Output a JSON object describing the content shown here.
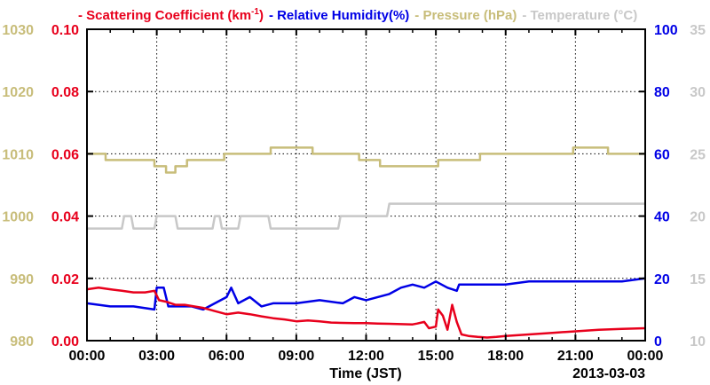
{
  "colors": {
    "scattering": "#e8001c",
    "humidity": "#0000e6",
    "pressure": "#c8bd7a",
    "temperature": "#c8c8c8",
    "axis": "#000000"
  },
  "legend": [
    {
      "label": "- Scattering Coefficient (km",
      "sup": "-1",
      "tail": ")",
      "color_key": "scattering"
    },
    {
      "label": "- Relative Humidity(%)",
      "color_key": "humidity"
    },
    {
      "label": "- Pressure (hPa)",
      "color_key": "pressure"
    },
    {
      "label": "- Temperature (°C)",
      "color_key": "temperature"
    }
  ],
  "chart_data": {
    "type": "line",
    "xlabel": "Time (JST)",
    "date_label": "2013-03-03",
    "x_ticks": [
      "00:00",
      "03:00",
      "06:00",
      "09:00",
      "12:00",
      "15:00",
      "18:00",
      "21:00",
      "00:00"
    ],
    "xlim": [
      0,
      24
    ],
    "grid": true,
    "axes": {
      "scattering": {
        "side": "left-inner",
        "range": [
          0.0,
          0.1
        ],
        "ticks": [
          "0.00",
          "0.02",
          "0.04",
          "0.06",
          "0.08",
          "0.10"
        ]
      },
      "pressure": {
        "side": "left-outer",
        "range": [
          980,
          1030
        ],
        "ticks": [
          "980",
          "990",
          "1000",
          "1010",
          "1020",
          "1030"
        ]
      },
      "humidity": {
        "side": "right-inner",
        "range": [
          0,
          100
        ],
        "ticks": [
          "0",
          "20",
          "40",
          "60",
          "80",
          "100"
        ]
      },
      "temperature": {
        "side": "right-outer",
        "range": [
          10,
          35
        ],
        "ticks": [
          "10",
          "15",
          "20",
          "25",
          "30",
          "35"
        ]
      }
    },
    "series": [
      {
        "name": "Scattering Coefficient (km-1)",
        "axis": "scattering",
        "x": [
          0,
          0.5,
          1,
          1.5,
          2,
          2.5,
          2.9,
          3.1,
          3.4,
          3.8,
          4.2,
          4.6,
          5,
          5.5,
          6,
          6.5,
          7,
          7.5,
          8,
          8.5,
          9,
          9.5,
          10,
          10.5,
          11,
          11.5,
          12,
          12.5,
          13,
          13.5,
          14,
          14.2,
          14.5,
          14.7,
          15,
          15.1,
          15.3,
          15.5,
          15.7,
          15.9,
          16.1,
          16.4,
          16.8,
          17.2,
          17.6,
          18,
          19,
          20,
          21,
          22,
          23,
          24
        ],
        "y": [
          0.0165,
          0.017,
          0.0165,
          0.016,
          0.0155,
          0.0155,
          0.016,
          0.013,
          0.0125,
          0.0115,
          0.0115,
          0.011,
          0.0105,
          0.0095,
          0.0085,
          0.009,
          0.0085,
          0.0078,
          0.0072,
          0.0068,
          0.0062,
          0.0065,
          0.0062,
          0.0058,
          0.0057,
          0.0056,
          0.0056,
          0.0055,
          0.0054,
          0.0053,
          0.0052,
          0.0055,
          0.006,
          0.004,
          0.0045,
          0.01,
          0.008,
          0.0035,
          0.0115,
          0.006,
          0.002,
          0.0015,
          0.0012,
          0.001,
          0.0012,
          0.0015,
          0.002,
          0.0025,
          0.003,
          0.0035,
          0.0038,
          0.004
        ]
      },
      {
        "name": "Relative Humidity(%)",
        "axis": "humidity",
        "x": [
          0,
          1,
          2,
          2.9,
          3.0,
          3.3,
          3.5,
          4,
          4.5,
          5,
          5.5,
          6,
          6.2,
          6.5,
          7,
          7.5,
          8,
          9,
          10,
          11,
          11.5,
          12,
          12.5,
          13,
          13.5,
          14,
          14.5,
          15,
          15.5,
          15.9,
          16,
          17,
          18,
          19,
          20,
          21,
          22,
          23,
          24
        ],
        "y": [
          12,
          11,
          11,
          10,
          17,
          17,
          11,
          11,
          11,
          10,
          12,
          14,
          17,
          12,
          14,
          11,
          12,
          12,
          13,
          12,
          14,
          13,
          14,
          15,
          17,
          18,
          17,
          19,
          17,
          16,
          18,
          18,
          18,
          19,
          19,
          19,
          19,
          19,
          20
        ]
      },
      {
        "name": "Pressure (hPa)",
        "axis": "pressure",
        "x": [
          0,
          0.8,
          0.8,
          2.9,
          2.9,
          3.4,
          3.4,
          3.8,
          3.8,
          4.3,
          4.3,
          5.9,
          5.9,
          7.9,
          7.9,
          9.7,
          9.7,
          11.7,
          11.7,
          12.6,
          12.6,
          15.1,
          15.1,
          16.9,
          16.9,
          20.9,
          20.9,
          22.4,
          22.4,
          24
        ],
        "y": [
          1010,
          1010,
          1009,
          1009,
          1008,
          1008,
          1007,
          1007,
          1008,
          1008,
          1009,
          1009,
          1010,
          1010,
          1011,
          1011,
          1010,
          1010,
          1009,
          1009,
          1008,
          1008,
          1009,
          1009,
          1010,
          1010,
          1011,
          1011,
          1010,
          1010
        ]
      },
      {
        "name": "Temperature (°C)",
        "axis": "temperature",
        "x": [
          0,
          1.5,
          1.6,
          1.9,
          2.0,
          2.9,
          3.0,
          3.8,
          3.9,
          5.4,
          5.5,
          5.7,
          5.8,
          6.5,
          6.6,
          7.8,
          7.9,
          10.8,
          10.9,
          12.9,
          13.0,
          24
        ],
        "y": [
          19,
          19,
          20,
          20,
          19,
          19,
          20,
          20,
          19,
          19,
          20,
          20,
          19,
          19,
          20,
          20,
          19,
          19,
          20,
          20,
          21,
          21
        ]
      }
    ]
  }
}
